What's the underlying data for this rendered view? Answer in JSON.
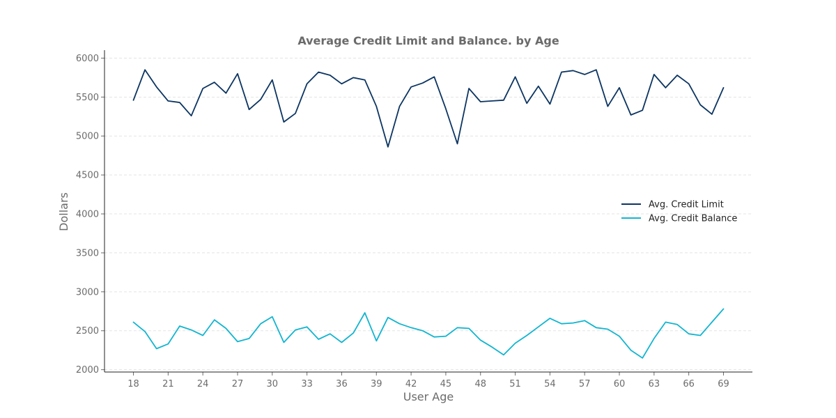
{
  "chart_data": {
    "type": "line",
    "title": "Average Credit Limit and Balance. by Age",
    "xlabel": "User Age",
    "ylabel": "Dollars",
    "x": [
      18,
      19,
      20,
      21,
      22,
      23,
      24,
      25,
      26,
      27,
      28,
      29,
      30,
      31,
      32,
      33,
      34,
      35,
      36,
      37,
      38,
      39,
      40,
      41,
      42,
      43,
      44,
      45,
      46,
      47,
      48,
      49,
      50,
      51,
      52,
      53,
      54,
      55,
      56,
      57,
      58,
      59,
      60,
      61,
      62,
      63,
      64,
      65,
      66,
      67,
      68,
      69
    ],
    "x_ticks": [
      18,
      21,
      24,
      27,
      30,
      33,
      36,
      39,
      42,
      45,
      48,
      51,
      54,
      57,
      60,
      63,
      66,
      69
    ],
    "y_ticks": [
      2000,
      2500,
      3000,
      3500,
      4000,
      4500,
      5000,
      5500,
      6000
    ],
    "xlim": [
      15.5,
      71.5
    ],
    "ylim": [
      1970,
      6120
    ],
    "grid": "horizontal",
    "legend_position": "right",
    "series": [
      {
        "name": "Avg. Credit Limit",
        "color": "#0b3461",
        "values": [
          5460,
          5850,
          5630,
          5450,
          5430,
          5260,
          5610,
          5690,
          5550,
          5800,
          5340,
          5470,
          5720,
          5180,
          5290,
          5670,
          5820,
          5780,
          5670,
          5750,
          5720,
          5380,
          4860,
          5380,
          5630,
          5680,
          5760,
          5350,
          4900,
          5610,
          5440,
          5450,
          5460,
          5760,
          5420,
          5640,
          5410,
          5820,
          5840,
          5790,
          5850,
          5380,
          5620,
          5270,
          5330,
          5790,
          5620,
          5780,
          5670,
          5400,
          5280,
          5620
        ]
      },
      {
        "name": "Avg. Credit Balance",
        "color": "#12b5d0",
        "values": [
          2610,
          2490,
          2270,
          2330,
          2560,
          2510,
          2440,
          2640,
          2530,
          2360,
          2400,
          2590,
          2680,
          2350,
          2510,
          2550,
          2390,
          2460,
          2350,
          2470,
          2730,
          2370,
          2670,
          2590,
          2540,
          2500,
          2420,
          2430,
          2540,
          2530,
          2380,
          2290,
          2190,
          2340,
          2440,
          2550,
          2660,
          2590,
          2600,
          2630,
          2540,
          2520,
          2430,
          2250,
          2150,
          2400,
          2610,
          2580,
          2460,
          2440,
          2610,
          2780
        ]
      }
    ]
  }
}
